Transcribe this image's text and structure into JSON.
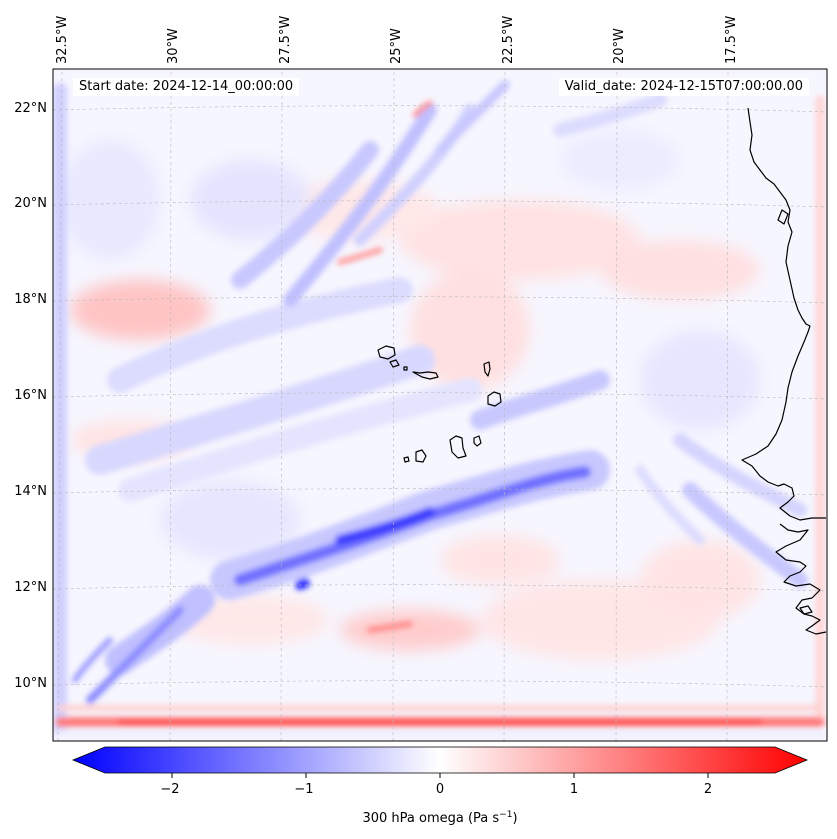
{
  "info": {
    "start_date": "Start date: 2024-12-14_00:00:00",
    "valid_date": "Valid_date: 2024-12-15T07:00:00.00"
  },
  "map": {
    "lon_ticks": [
      "32.5°W",
      "30°W",
      "27.5°W",
      "25°W",
      "22.5°W",
      "20°W",
      "17.5°W"
    ],
    "lat_ticks": [
      "22°N",
      "20°N",
      "18°N",
      "16°N",
      "14°N",
      "12°N",
      "10°N"
    ],
    "field_colors": {
      "negative": "#0000ff",
      "zero": "#ffffff",
      "positive": "#ff0000"
    }
  },
  "colorbar": {
    "ticks": [
      "−2",
      "−1",
      "0",
      "1",
      "2"
    ],
    "label": "300 hPa omega (Pa s",
    "label_sup": "−1",
    "label_end": ")"
  }
}
